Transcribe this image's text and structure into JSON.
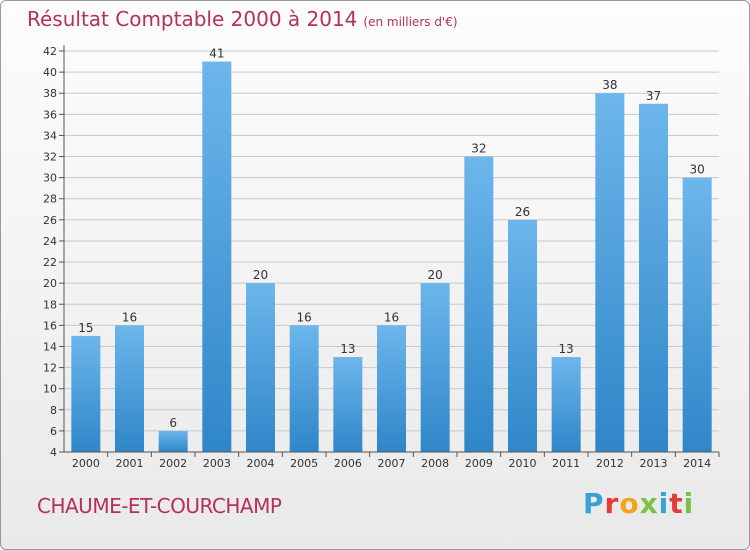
{
  "header": {
    "title": "Résultat Comptable 2000 à 2014",
    "subtitle": "(en milliers d'€)"
  },
  "footer": {
    "city": "CHAUME-ET-COURCHAMP",
    "logo_letters": [
      "P",
      "r",
      "o",
      "x",
      "i",
      "t",
      "i"
    ],
    "logo_colors": [
      "#3aa0d8",
      "#e23b3b",
      "#f2a51a",
      "#7cc242",
      "#3aa0d8",
      "#e23b3b",
      "#7cc242"
    ]
  },
  "colors": {
    "bar_light": "#6cb6ec",
    "bar_dark": "#2f86c8",
    "title": "#b5305a",
    "grid": "#c8c8c8"
  },
  "chart_data": {
    "type": "bar",
    "title": "Résultat Comptable 2000 à 2014",
    "subtitle": "(en milliers d'€)",
    "categories": [
      "2000",
      "2001",
      "2002",
      "2003",
      "2004",
      "2005",
      "2006",
      "2007",
      "2008",
      "2009",
      "2010",
      "2011",
      "2012",
      "2013",
      "2014"
    ],
    "values": [
      15,
      16,
      6,
      41,
      20,
      16,
      13,
      16,
      20,
      32,
      26,
      13,
      38,
      37,
      30
    ],
    "ylim": [
      4,
      42
    ],
    "yticks": [
      4,
      6,
      8,
      10,
      12,
      14,
      16,
      18,
      20,
      22,
      24,
      26,
      28,
      30,
      32,
      34,
      36,
      38,
      40,
      42
    ],
    "grid": true,
    "xlabel": "",
    "ylabel": ""
  }
}
